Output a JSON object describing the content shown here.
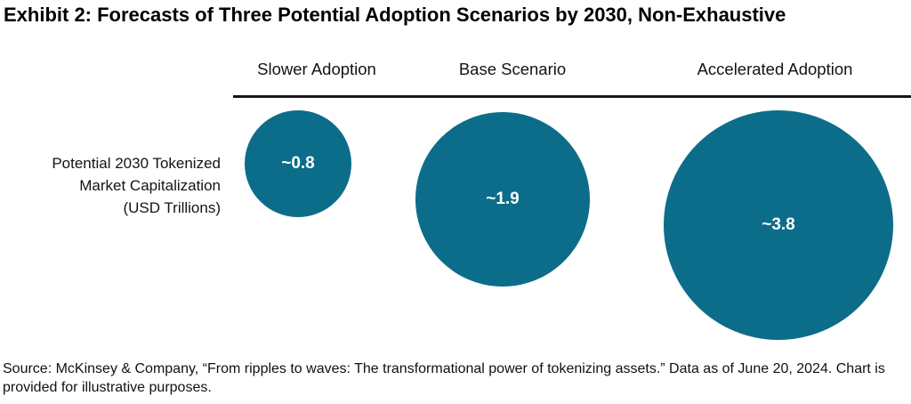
{
  "header": {
    "title": "Exhibit 2: Forecasts of Three Potential Adoption Scenarios by 2030, Non-Exhaustive"
  },
  "row_label": {
    "text": "Potential 2030 Tokenized\nMarket Capitalization\n(USD Trillions)"
  },
  "scenarios": [
    {
      "label": "Slower Adoption",
      "value": 0.8,
      "value_label": "~0.8"
    },
    {
      "label": "Base Scenario",
      "value": 1.9,
      "value_label": "~1.9"
    },
    {
      "label": "Accelerated Adoption",
      "value": 3.8,
      "value_label": "~3.8"
    }
  ],
  "footer": {
    "source": "Source: McKinsey & Company, “From ripples to waves: The transformational power of tokenizing assets.” Data as of June 20, 2024. Chart is provided for illustrative purposes."
  },
  "colors": {
    "bubble_fill": "#0c6d8a",
    "bubble_text": "#ffffff",
    "divider": "#161616",
    "text": "#111111"
  },
  "chart_data": {
    "type": "bubble",
    "title": "Exhibit 2: Forecasts of Three Potential Adoption Scenarios by 2030, Non-Exhaustive",
    "categories": [
      "Slower Adoption",
      "Base Scenario",
      "Accelerated Adoption"
    ],
    "values": [
      0.8,
      1.9,
      3.8
    ],
    "value_labels": [
      "~0.8",
      "~1.9",
      "~3.8"
    ],
    "measure_label": "Potential 2030 Tokenized Market Capitalization (USD Trillions)",
    "unit": "USD Trillions",
    "sizing": "circle area proportional to value",
    "legend_position": "none",
    "grid": false,
    "source": "Source: McKinsey & Company, “From ripples to waves: The transformational power of tokenizing assets.” Data as of June 20, 2024. Chart is provided for illustrative purposes."
  }
}
